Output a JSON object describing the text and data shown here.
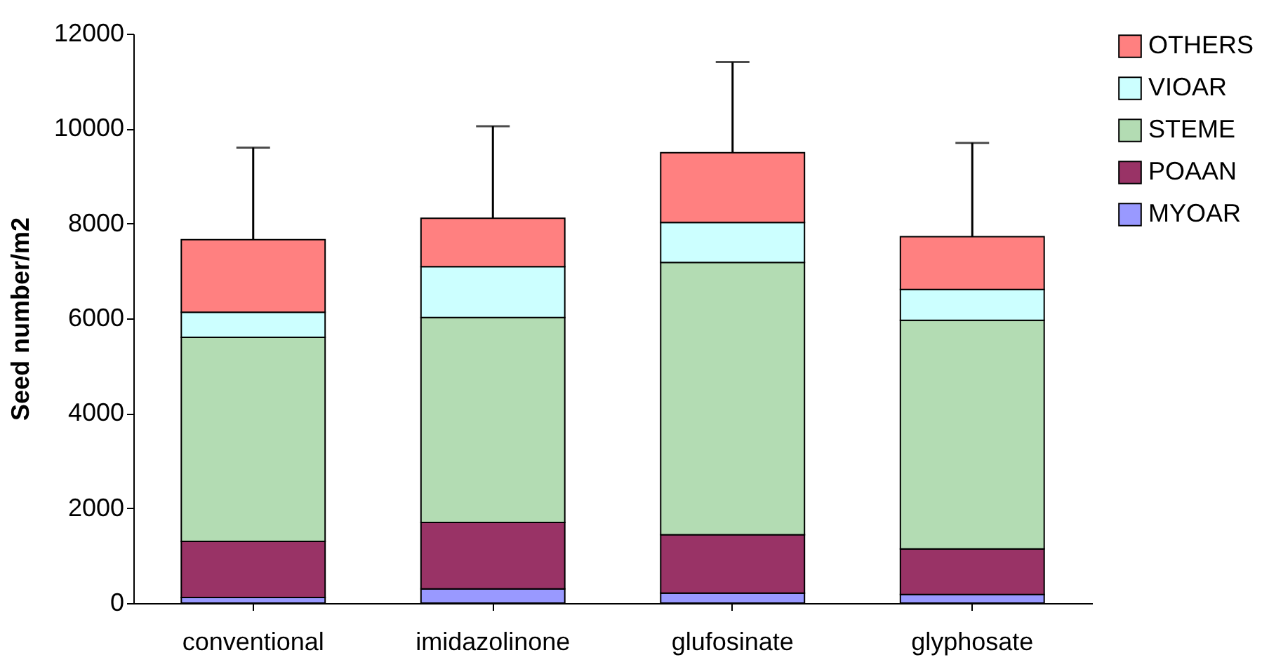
{
  "chart_data": {
    "type": "bar",
    "stacked": true,
    "ylabel": "Seed number/m2",
    "categories": [
      "conventional",
      "imidazolinone",
      "glufosinate",
      "glyphosate"
    ],
    "series": [
      {
        "name": "MYOAR",
        "color": "#9999ff",
        "values": [
          120,
          300,
          210,
          180
        ]
      },
      {
        "name": "POAAN",
        "color": "#993366",
        "values": [
          1180,
          1400,
          1230,
          960
        ]
      },
      {
        "name": "STEME",
        "color": "#b3dcb3",
        "values": [
          4300,
          4320,
          5740,
          4820
        ]
      },
      {
        "name": "VIOAR",
        "color": "#ccffff",
        "values": [
          530,
          1070,
          840,
          650
        ]
      },
      {
        "name": "OTHERS",
        "color": "#ff8080",
        "values": [
          1530,
          1020,
          1470,
          1110
        ],
        "errors": [
          [
            7660,
            9600
          ],
          [
            8110,
            10050
          ],
          [
            9490,
            11400
          ],
          [
            7720,
            9700
          ]
        ]
      }
    ],
    "ylim": [
      0,
      12000
    ],
    "yticks": [
      0,
      2000,
      4000,
      6000,
      8000,
      10000,
      12000
    ],
    "grid": false,
    "legend": "right"
  }
}
